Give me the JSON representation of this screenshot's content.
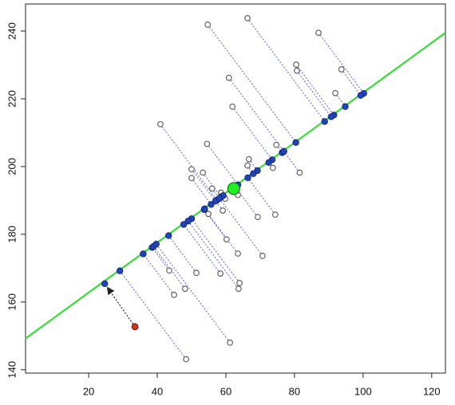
{
  "chart_data": {
    "type": "scatter",
    "xlim": [
      1.6,
      124
    ],
    "ylim": [
      139,
      248
    ],
    "xticks": [
      20,
      40,
      60,
      80,
      100,
      120
    ],
    "yticks": [
      140,
      160,
      180,
      200,
      220,
      240
    ],
    "line": {
      "x": [
        1.6,
        124
      ],
      "y": [
        149.2,
        239.5
      ],
      "color": "#33dd33"
    },
    "connector_color": "#7777dd",
    "points": {
      "color": "#555555",
      "x": [
        66.3,
        54.7,
        87.0,
        80.5,
        80.7,
        93.7,
        60.9,
        91.9,
        61.9,
        40.9,
        54.5,
        74.7,
        66.7,
        66.3,
        73.7,
        50.0,
        53.3,
        81.5,
        50.0,
        56.0,
        58.6,
        63.5,
        59.8,
        59.1,
        54.9,
        69.3,
        74.4,
        60.2,
        63.5,
        70.7,
        51.4,
        43.5,
        58.4,
        64.0,
        63.7,
        48.1,
        44.9,
        61.2,
        48.4
      ],
      "y": [
        243.8,
        241.9,
        239.5,
        230.1,
        228.3,
        228.7,
        226.2,
        221.7,
        217.7,
        212.5,
        206.7,
        206.4,
        202.2,
        200.3,
        199.6,
        199.2,
        198.2,
        198.2,
        196.6,
        193.5,
        192.3,
        191.6,
        190.5,
        187.0,
        186.0,
        185.1,
        185.8,
        178.5,
        174.3,
        173.6,
        168.6,
        169.3,
        168.4,
        165.6,
        163.9,
        163.9,
        162.1,
        148.0,
        143.1
      ]
    },
    "projections": {
      "color": "#2244bb",
      "x": [
        88.8,
        80.4,
        100.2,
        91.5,
        90.7,
        99.3,
        76.9,
        94.8,
        73.5,
        57.4,
        63.5,
        76.4,
        69.2,
        68.0,
        72.5,
        57.0,
        58.6,
        76.9,
        55.7,
        58.1,
        59.2,
        62.1,
        59.2,
        57.0,
        53.8,
        62.7,
        66.4,
        53.7,
        53.8,
        58.1,
        43.3,
        38.5,
        47.7,
        50.0,
        49.0,
        38.9,
        35.9,
        39.7,
        29.1
      ],
      "y": [
        213.3,
        207.1,
        221.6,
        215.2,
        214.7,
        221.0,
        204.5,
        217.7,
        202.0,
        190.1,
        194.6,
        204.1,
        198.8,
        197.9,
        201.2,
        189.8,
        191.0,
        204.5,
        188.8,
        190.6,
        191.4,
        193.5,
        191.4,
        189.8,
        187.5,
        194.0,
        196.7,
        187.3,
        187.4,
        190.6,
        179.6,
        176.1,
        182.9,
        184.6,
        183.9,
        176.4,
        174.2,
        177.1,
        169.2
      ]
    },
    "center": {
      "x": 62.3,
      "y": 193.5,
      "color": "#22ee22"
    },
    "new_point": {
      "x": 33.5,
      "y": 152.7,
      "proj_x": 24.7,
      "proj_y": 165.4,
      "color": "#cc3322"
    }
  }
}
